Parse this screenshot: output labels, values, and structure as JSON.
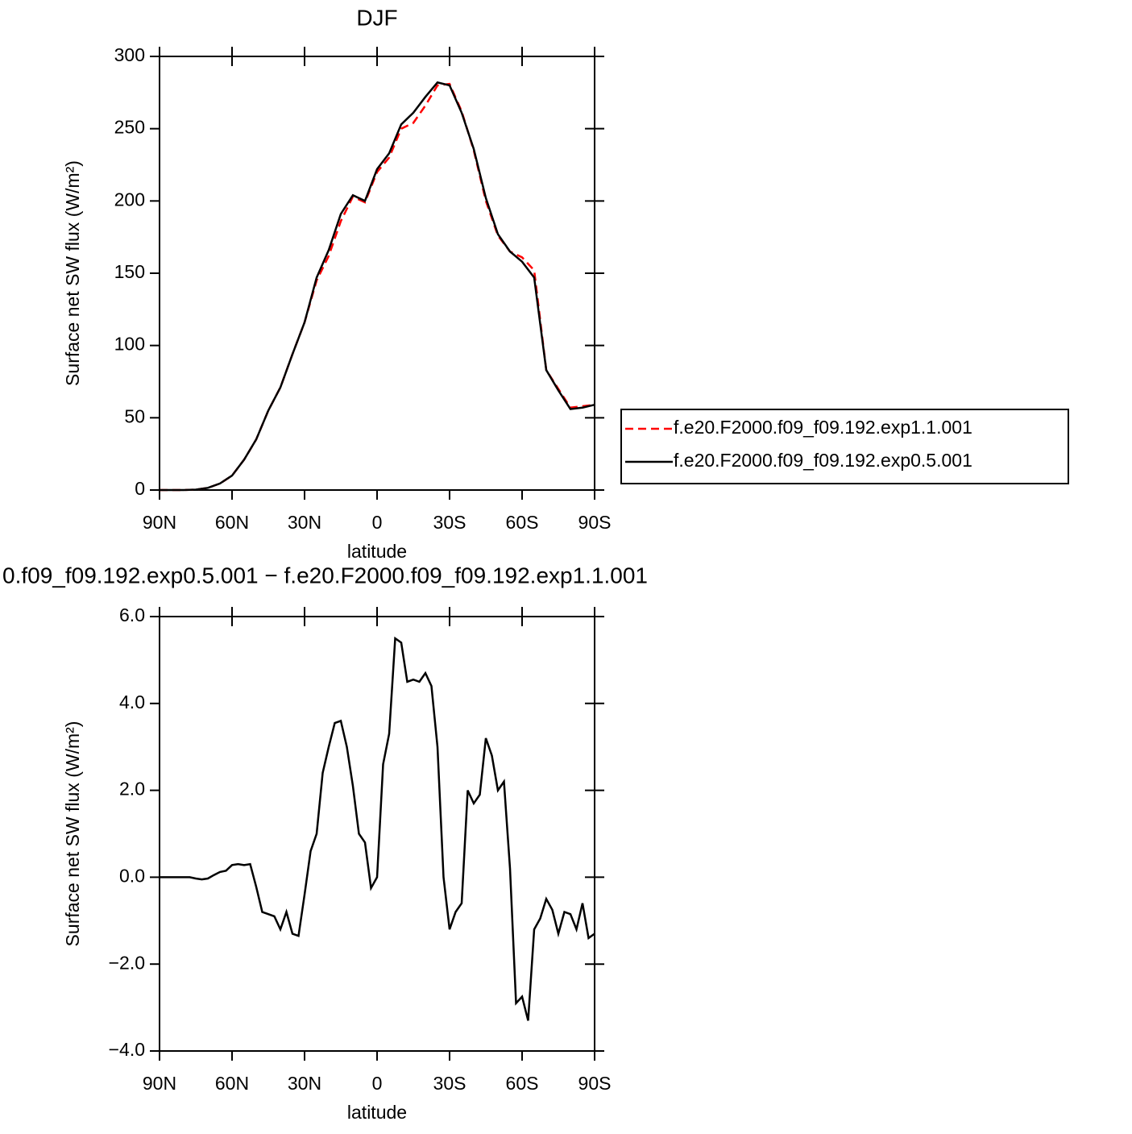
{
  "chart_data": [
    {
      "type": "line",
      "title": "DJF",
      "x_label": "latitude",
      "y_label": "Surface net SW flux (W/m²)",
      "x": [
        90,
        85,
        80,
        75,
        70,
        65,
        60,
        55,
        50,
        45,
        40,
        35,
        30,
        25,
        20,
        15,
        10,
        5,
        0,
        -5,
        -10,
        -15,
        -20,
        -25,
        -30,
        -35,
        -40,
        -45,
        -50,
        -55,
        -60,
        -65,
        -70,
        -75,
        -80,
        -85,
        -90
      ],
      "series": [
        {
          "name": "f.e20.F2000.f09_f09.192.exp1.1.001",
          "color": "#ff0000",
          "style": "dashed",
          "values": [
            0,
            0,
            0,
            0.3,
            1.5,
            4.5,
            10,
            21,
            35,
            55,
            71,
            94,
            116,
            145,
            162,
            186,
            203,
            199,
            220,
            230,
            250,
            254,
            266,
            280,
            281,
            262,
            235,
            200,
            176,
            165,
            161,
            152,
            83,
            70,
            57,
            58,
            59
          ]
        },
        {
          "name": "f.e20.F2000.f09_f09.192.exp0.5.001",
          "color": "#000000",
          "style": "solid",
          "values": [
            0,
            0,
            0,
            0.3,
            1.5,
            4.5,
            10,
            21,
            35,
            55,
            71,
            94,
            116,
            147,
            166,
            191,
            204,
            200,
            222,
            233,
            253,
            261,
            272,
            282,
            280,
            261,
            236,
            202,
            177,
            165,
            158,
            147,
            83,
            69,
            56,
            57,
            59
          ]
        }
      ],
      "xlim": [
        90,
        -90
      ],
      "ylim": [
        0,
        300
      ],
      "xticks": [
        {
          "value": 90,
          "label": "90N"
        },
        {
          "value": 60,
          "label": "60N"
        },
        {
          "value": 30,
          "label": "30N"
        },
        0,
        {
          "value": -30,
          "label": "30S"
        },
        {
          "value": -60,
          "label": "60S"
        },
        {
          "value": -90,
          "label": "90S"
        }
      ],
      "yticks": [
        0,
        50,
        100,
        150,
        200,
        250,
        300
      ],
      "legend": "right"
    },
    {
      "type": "line",
      "title": "0.f09_f09.192.exp0.5.001 − f.e20.F2000.f09_f09.192.exp1.1.001",
      "x_label": "latitude",
      "y_label": "Surface net SW flux (W/m²)",
      "x": [
        90,
        87.5,
        85,
        82.5,
        80,
        77.5,
        75,
        72.5,
        70,
        67.5,
        65,
        62.5,
        60,
        57.5,
        55,
        52.5,
        50,
        47.5,
        45,
        42.5,
        40,
        37.5,
        35,
        32.5,
        30,
        27.5,
        25,
        22.5,
        20,
        17.5,
        15,
        12.5,
        10,
        7.5,
        5,
        2.5,
        0,
        -2.5,
        -5,
        -7.5,
        -10,
        -12.5,
        -15,
        -17.5,
        -20,
        -22.5,
        -25,
        -27.5,
        -30,
        -32.5,
        -35,
        -37.5,
        -40,
        -42.5,
        -45,
        -47.5,
        -50,
        -52.5,
        -55,
        -57.5,
        -60,
        -62.5,
        -65,
        -67.5,
        -70,
        -72.5,
        -75,
        -77.5,
        -80,
        -82.5,
        -85,
        -87.5,
        -90
      ],
      "series": [
        {
          "color": "#000000",
          "style": "solid",
          "values": [
            0,
            0,
            0,
            0,
            0,
            0,
            -0.03,
            -0.05,
            -0.03,
            0.05,
            0.12,
            0.15,
            0.28,
            0.3,
            0.28,
            0.3,
            -0.22,
            -0.8,
            -0.85,
            -0.9,
            -1.2,
            -0.8,
            -1.3,
            -1.35,
            -0.4,
            0.6,
            1.0,
            2.4,
            3.0,
            3.55,
            3.6,
            3.0,
            2.1,
            1.0,
            0.8,
            -0.25,
            0.0,
            2.6,
            3.3,
            5.5,
            5.4,
            4.5,
            4.55,
            4.5,
            4.7,
            4.4,
            3.0,
            0.0,
            -1.2,
            -0.8,
            -0.6,
            2.0,
            1.7,
            1.9,
            3.2,
            2.8,
            2.0,
            2.2,
            0.2,
            -2.9,
            -2.75,
            -3.3,
            -1.2,
            -0.95,
            -0.5,
            -0.75,
            -1.3,
            -0.8,
            -0.85,
            -1.2,
            -0.6,
            -1.4,
            -1.3
          ]
        }
      ],
      "xlim": [
        90,
        -90
      ],
      "ylim": [
        -4,
        6
      ],
      "xticks": [
        {
          "value": 90,
          "label": "90N"
        },
        {
          "value": 60,
          "label": "60N"
        },
        {
          "value": 30,
          "label": "30N"
        },
        0,
        {
          "value": -30,
          "label": "30S"
        },
        {
          "value": -60,
          "label": "60S"
        },
        {
          "value": -90,
          "label": "90S"
        }
      ],
      "yticks": [
        {
          "value": -4,
          "label": "−4.0"
        },
        {
          "value": -2,
          "label": "−2.0"
        },
        {
          "value": 0,
          "label": "0.0"
        },
        {
          "value": 2,
          "label": "2.0"
        },
        {
          "value": 4,
          "label": "4.0"
        },
        {
          "value": 6,
          "label": "6.0"
        }
      ]
    }
  ]
}
